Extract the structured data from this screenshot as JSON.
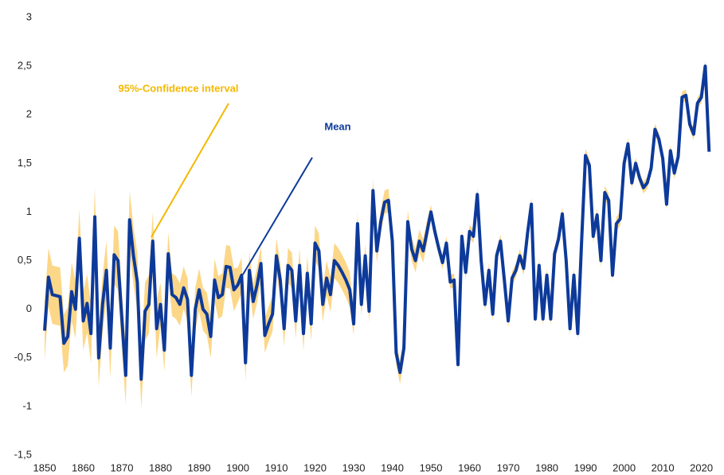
{
  "chart_data": {
    "type": "line",
    "x": [
      1850,
      1851,
      1852,
      1853,
      1854,
      1855,
      1856,
      1857,
      1858,
      1859,
      1860,
      1861,
      1862,
      1863,
      1864,
      1865,
      1866,
      1867,
      1868,
      1869,
      1870,
      1871,
      1872,
      1873,
      1874,
      1875,
      1876,
      1877,
      1878,
      1879,
      1880,
      1881,
      1882,
      1883,
      1884,
      1885,
      1886,
      1887,
      1888,
      1889,
      1890,
      1891,
      1892,
      1893,
      1894,
      1895,
      1896,
      1897,
      1898,
      1899,
      1900,
      1901,
      1902,
      1903,
      1904,
      1905,
      1906,
      1907,
      1908,
      1909,
      1910,
      1911,
      1912,
      1913,
      1914,
      1915,
      1916,
      1917,
      1918,
      1919,
      1920,
      1921,
      1922,
      1923,
      1924,
      1925,
      1926,
      1927,
      1928,
      1929,
      1930,
      1931,
      1932,
      1933,
      1934,
      1935,
      1936,
      1937,
      1938,
      1939,
      1940,
      1941,
      1942,
      1943,
      1944,
      1945,
      1946,
      1947,
      1948,
      1949,
      1950,
      1951,
      1952,
      1953,
      1954,
      1955,
      1956,
      1957,
      1958,
      1959,
      1960,
      1961,
      1962,
      1963,
      1964,
      1965,
      1966,
      1967,
      1968,
      1969,
      1970,
      1971,
      1972,
      1973,
      1974,
      1975,
      1976,
      1977,
      1978,
      1979,
      1980,
      1981,
      1982,
      1983,
      1984,
      1985,
      1986,
      1987,
      1988,
      1989,
      1990,
      1991,
      1992,
      1993,
      1994,
      1995,
      1996,
      1997,
      1998,
      1999,
      2000,
      2001,
      2002,
      2003,
      2004,
      2005,
      2006,
      2007,
      2008,
      2009,
      2010,
      2011,
      2012,
      2013,
      2014,
      2015,
      2016,
      2017,
      2018,
      2019,
      2020,
      2021,
      2022
    ],
    "series": [
      {
        "name": "Mean",
        "color": "#0d3a9a",
        "values": [
          -0.22,
          0.33,
          0.15,
          0.14,
          0.13,
          -0.35,
          -0.28,
          0.18,
          0.0,
          0.73,
          -0.12,
          0.06,
          -0.25,
          0.95,
          -0.5,
          0.05,
          0.4,
          -0.4,
          0.56,
          0.5,
          -0.1,
          -0.68,
          0.92,
          0.55,
          0.28,
          -0.72,
          -0.02,
          0.05,
          0.7,
          -0.2,
          0.05,
          -0.42,
          0.57,
          0.15,
          0.12,
          0.05,
          0.22,
          0.1,
          -0.68,
          0.0,
          0.2,
          0.0,
          -0.05,
          -0.28,
          0.3,
          0.12,
          0.15,
          0.44,
          0.43,
          0.2,
          0.25,
          0.35,
          -0.55,
          0.4,
          0.08,
          0.25,
          0.47,
          -0.27,
          -0.15,
          -0.05,
          0.55,
          0.3,
          -0.2,
          0.45,
          0.4,
          -0.12,
          0.45,
          -0.25,
          0.37,
          -0.15,
          0.68,
          0.6,
          0.05,
          0.32,
          0.15,
          0.5,
          0.45,
          0.38,
          0.3,
          0.2,
          -0.15,
          0.88,
          0.05,
          0.55,
          -0.02,
          1.22,
          0.6,
          0.9,
          1.1,
          1.12,
          0.7,
          -0.45,
          -0.65,
          -0.4,
          0.9,
          0.62,
          0.5,
          0.7,
          0.6,
          0.8,
          1.0,
          0.8,
          0.63,
          0.48,
          0.68,
          0.28,
          0.3,
          -0.57,
          0.75,
          0.38,
          0.8,
          0.75,
          1.18,
          0.5,
          0.05,
          0.4,
          -0.05,
          0.55,
          0.7,
          0.3,
          -0.12,
          0.32,
          0.4,
          0.55,
          0.42,
          0.78,
          1.08,
          -0.1,
          0.45,
          -0.1,
          0.35,
          -0.1,
          0.57,
          0.72,
          0.98,
          0.5,
          -0.2,
          0.35,
          -0.25,
          0.7,
          1.58,
          1.48,
          0.75,
          0.97,
          0.5,
          1.2,
          1.12,
          0.35,
          0.88,
          0.93,
          1.5,
          1.7,
          1.3,
          1.5,
          1.35,
          1.25,
          1.3,
          1.45,
          1.85,
          1.75,
          1.55,
          1.08,
          1.63,
          1.4,
          1.57,
          2.18,
          2.2,
          1.9,
          1.8,
          2.12,
          2.18,
          2.5,
          1.62
        ]
      },
      {
        "name": "95%-Confidence interval",
        "color": "#fcd073",
        "values": [
          0.3,
          0.3,
          0.3,
          0.3,
          0.3,
          0.3,
          0.3,
          0.3,
          0.3,
          0.3,
          0.3,
          0.3,
          0.3,
          0.3,
          0.3,
          0.3,
          0.3,
          0.3,
          0.3,
          0.3,
          0.3,
          0.3,
          0.3,
          0.3,
          0.3,
          0.3,
          0.3,
          0.3,
          0.3,
          0.3,
          0.22,
          0.22,
          0.22,
          0.22,
          0.22,
          0.22,
          0.22,
          0.22,
          0.22,
          0.22,
          0.22,
          0.22,
          0.22,
          0.22,
          0.22,
          0.22,
          0.22,
          0.22,
          0.22,
          0.22,
          0.18,
          0.18,
          0.18,
          0.18,
          0.18,
          0.18,
          0.18,
          0.18,
          0.18,
          0.18,
          0.18,
          0.18,
          0.18,
          0.18,
          0.18,
          0.18,
          0.18,
          0.18,
          0.18,
          0.18,
          0.18,
          0.18,
          0.18,
          0.18,
          0.18,
          0.18,
          0.18,
          0.18,
          0.18,
          0.18,
          0.12,
          0.12,
          0.12,
          0.12,
          0.12,
          0.12,
          0.12,
          0.12,
          0.12,
          0.12,
          0.12,
          0.12,
          0.12,
          0.12,
          0.12,
          0.12,
          0.12,
          0.12,
          0.12,
          0.12,
          0.07,
          0.07,
          0.07,
          0.07,
          0.07,
          0.07,
          0.07,
          0.07,
          0.07,
          0.07,
          0.07,
          0.07,
          0.07,
          0.07,
          0.07,
          0.07,
          0.07,
          0.07,
          0.07,
          0.07,
          0.07,
          0.07,
          0.07,
          0.07,
          0.07,
          0.07,
          0.07,
          0.07,
          0.07,
          0.07,
          0.07,
          0.07,
          0.07,
          0.07,
          0.07,
          0.07,
          0.07,
          0.07,
          0.07,
          0.07,
          0.07,
          0.07,
          0.07,
          0.07,
          0.07,
          0.07,
          0.07,
          0.07,
          0.07,
          0.07,
          0.06,
          0.06,
          0.06,
          0.06,
          0.06,
          0.06,
          0.06,
          0.06,
          0.06,
          0.06,
          0.06,
          0.06,
          0.06,
          0.06,
          0.06,
          0.06,
          0.06,
          0.06,
          0.06,
          0.06,
          0.06,
          0.06,
          0.06
        ]
      }
    ],
    "xlim": [
      1850,
      2024
    ],
    "xticks": [
      1850,
      1860,
      1870,
      1880,
      1890,
      1900,
      1910,
      1920,
      1930,
      1940,
      1950,
      1960,
      1970,
      1980,
      1990,
      2000,
      2010,
      2020
    ],
    "ylim": [
      -1.5,
      3
    ],
    "yticks": [
      {
        "value": -1.5,
        "label": "-1,5"
      },
      -1,
      {
        "value": -0.5,
        "label": "-0,5"
      },
      0,
      {
        "value": 0.5,
        "label": "0,5"
      },
      1,
      {
        "value": 1.5,
        "label": "1,5"
      },
      2,
      {
        "value": 2.5,
        "label": "2,5"
      },
      3
    ],
    "grid": false
  }
}
